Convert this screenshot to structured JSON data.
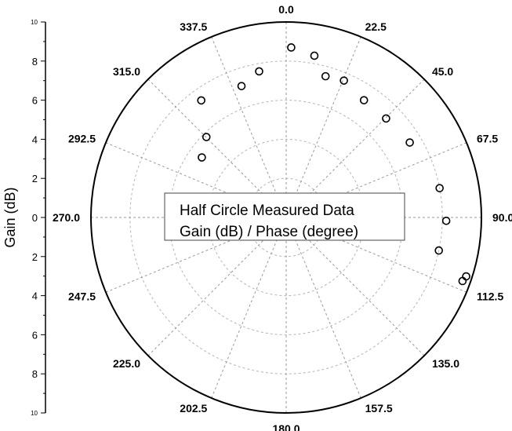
{
  "chart_data": {
    "type": "scatter",
    "coordinate_system": "polar",
    "annotation_lines": [
      "Half Circle Measured Data",
      "Gain (dB) / Phase (degree)"
    ],
    "ylabel": "Gain (dB)",
    "radial_range": [
      0,
      10
    ],
    "radial_ticks_labels": [
      "10",
      "8",
      "6",
      "4",
      "2",
      "0",
      "2",
      "4",
      "6",
      "8",
      "10"
    ],
    "angle_ticks": [
      "0.0",
      "22.5",
      "45.0",
      "67.5",
      "90.0",
      "112.5",
      "135.0",
      "157.5",
      "180.0",
      "202.5",
      "225.0",
      "247.5",
      "270.0",
      "292.5",
      "315.0",
      "337.5"
    ],
    "grid": true,
    "marker": "open-circle",
    "points": [
      {
        "angle": 305.4,
        "gain": 5.3
      },
      {
        "angle": 315.2,
        "gain": 5.8
      },
      {
        "angle": 324.0,
        "gain": 7.4
      },
      {
        "angle": 341.2,
        "gain": 7.1
      },
      {
        "angle": 349.5,
        "gain": 7.6
      },
      {
        "angle": 1.7,
        "gain": 8.7
      },
      {
        "angle": 9.9,
        "gain": 8.4
      },
      {
        "angle": 15.6,
        "gain": 7.5
      },
      {
        "angle": 22.9,
        "gain": 7.6
      },
      {
        "angle": 33.6,
        "gain": 7.2
      },
      {
        "angle": 45.3,
        "gain": 7.2
      },
      {
        "angle": 58.8,
        "gain": 7.4
      },
      {
        "angle": 79.2,
        "gain": 8.0
      },
      {
        "angle": 91.2,
        "gain": 8.2
      },
      {
        "angle": 102.2,
        "gain": 8.0
      },
      {
        "angle": 108.1,
        "gain": 9.7
      },
      {
        "angle": 109.8,
        "gain": 9.6
      }
    ]
  }
}
